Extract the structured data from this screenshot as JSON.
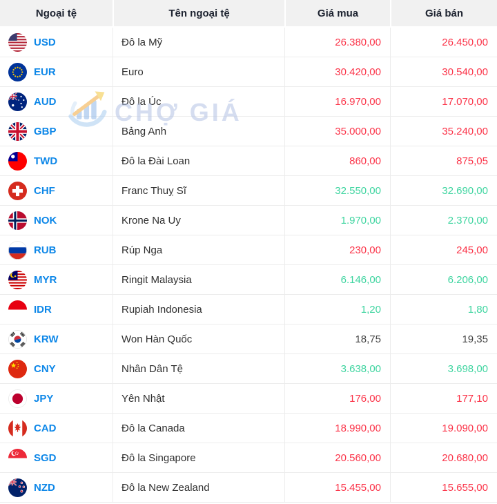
{
  "table": {
    "columns": [
      {
        "label": "Ngoại tệ"
      },
      {
        "label": "Tên ngoại tệ"
      },
      {
        "label": "Giá mua"
      },
      {
        "label": "Giá bán"
      }
    ],
    "rows": [
      {
        "code": "USD",
        "name": "Đô la Mỹ",
        "buy": "26.380,00",
        "sell": "26.450,00",
        "buy_trend": "down",
        "sell_trend": "down",
        "flag": "usd"
      },
      {
        "code": "EUR",
        "name": "Euro",
        "buy": "30.420,00",
        "sell": "30.540,00",
        "buy_trend": "down",
        "sell_trend": "down",
        "flag": "eur"
      },
      {
        "code": "AUD",
        "name": "Đô la Úc",
        "buy": "16.970,00",
        "sell": "17.070,00",
        "buy_trend": "down",
        "sell_trend": "down",
        "flag": "aud"
      },
      {
        "code": "GBP",
        "name": "Bảng Anh",
        "buy": "35.000,00",
        "sell": "35.240,00",
        "buy_trend": "down",
        "sell_trend": "down",
        "flag": "gbp"
      },
      {
        "code": "TWD",
        "name": "Đô la Đài Loan",
        "buy": "860,00",
        "sell": "875,05",
        "buy_trend": "down",
        "sell_trend": "down",
        "flag": "twd"
      },
      {
        "code": "CHF",
        "name": "Franc Thuỵ Sĩ",
        "buy": "32.550,00",
        "sell": "32.690,00",
        "buy_trend": "up",
        "sell_trend": "up",
        "flag": "chf"
      },
      {
        "code": "NOK",
        "name": "Krone Na Uy",
        "buy": "1.970,00",
        "sell": "2.370,00",
        "buy_trend": "up",
        "sell_trend": "up",
        "flag": "nok"
      },
      {
        "code": "RUB",
        "name": "Rúp Nga",
        "buy": "230,00",
        "sell": "245,00",
        "buy_trend": "down",
        "sell_trend": "down",
        "flag": "rub"
      },
      {
        "code": "MYR",
        "name": "Ringit Malaysia",
        "buy": "6.146,00",
        "sell": "6.206,00",
        "buy_trend": "up",
        "sell_trend": "up",
        "flag": "myr"
      },
      {
        "code": "IDR",
        "name": "Rupiah Indonesia",
        "buy": "1,20",
        "sell": "1,80",
        "buy_trend": "up",
        "sell_trend": "up",
        "flag": "idr"
      },
      {
        "code": "KRW",
        "name": "Won Hàn Quốc",
        "buy": "18,75",
        "sell": "19,35",
        "buy_trend": "flat",
        "sell_trend": "flat",
        "flag": "krw"
      },
      {
        "code": "CNY",
        "name": "Nhân Dân Tệ",
        "buy": "3.638,00",
        "sell": "3.698,00",
        "buy_trend": "up",
        "sell_trend": "up",
        "flag": "cny"
      },
      {
        "code": "JPY",
        "name": "Yên Nhật",
        "buy": "176,00",
        "sell": "177,10",
        "buy_trend": "down",
        "sell_trend": "down",
        "flag": "jpy"
      },
      {
        "code": "CAD",
        "name": "Đô la Canada",
        "buy": "18.990,00",
        "sell": "19.090,00",
        "buy_trend": "down",
        "sell_trend": "down",
        "flag": "cad"
      },
      {
        "code": "SGD",
        "name": "Đô la Singapore",
        "buy": "20.560,00",
        "sell": "20.680,00",
        "buy_trend": "down",
        "sell_trend": "down",
        "flag": "sgd"
      },
      {
        "code": "NZD",
        "name": "Đô la New Zealand",
        "buy": "15.455,00",
        "sell": "15.655,00",
        "buy_trend": "down",
        "sell_trend": "down",
        "flag": "nzd"
      }
    ]
  },
  "watermark": {
    "text": "CHỢ GIÁ"
  },
  "colors": {
    "price_down": "#fb3449",
    "price_up": "#3fd5a0",
    "price_neutral": "#444444",
    "code_blue": "#0d87e8",
    "header_bg": "#f1f1f1",
    "row_line": "#ececec"
  }
}
